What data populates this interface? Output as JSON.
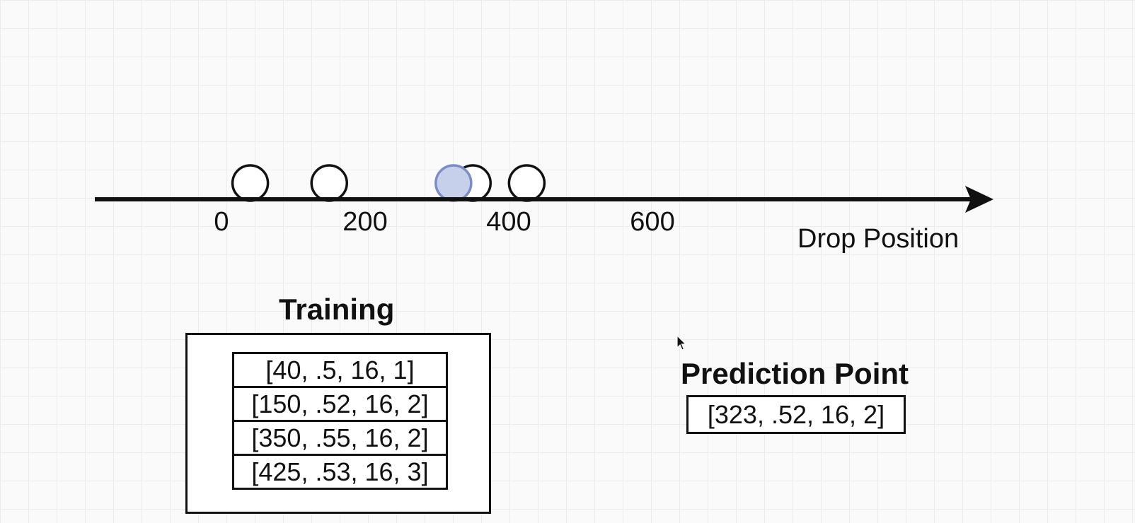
{
  "axis": {
    "title": "Drop Position",
    "ticks": [
      {
        "value": 0,
        "label": "0"
      },
      {
        "value": 200,
        "label": "200"
      },
      {
        "value": 400,
        "label": "400"
      },
      {
        "value": 600,
        "label": "600"
      }
    ],
    "training_points": [
      {
        "drop_position": 40
      },
      {
        "drop_position": 150
      },
      {
        "drop_position": 350
      },
      {
        "drop_position": 425
      }
    ],
    "prediction_point": {
      "drop_position": 323
    },
    "colors": {
      "line": "#111111",
      "point_outline": "#111111",
      "prediction_fill": "#c6d0ea",
      "prediction_stroke": "#7c8cc4"
    }
  },
  "training": {
    "title": "Training",
    "rows": [
      "[40, .5, 16, 1]",
      "[150, .52, 16, 2]",
      "[350, .55, 16, 2]",
      "[425, .53, 16, 3]"
    ]
  },
  "prediction": {
    "title": "Prediction Point",
    "value": "[323, .52, 16, 2]"
  },
  "cursor": {
    "icon": "mouse-pointer-icon"
  }
}
